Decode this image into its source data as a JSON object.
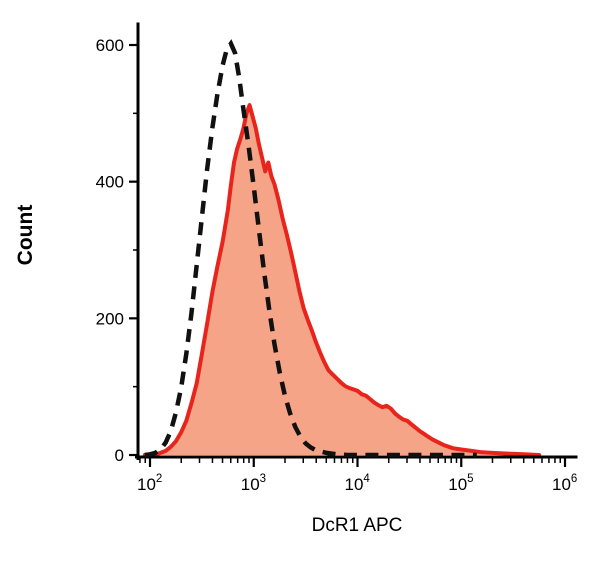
{
  "chart_data": {
    "type": "line",
    "subtype": "flow-cytometry-histogram",
    "title": "",
    "xlabel": "DcR1 APC",
    "ylabel": "Count",
    "x_scale": "log10",
    "x_range_log": [
      2,
      6
    ],
    "ylim": [
      0,
      600
    ],
    "y_ticks": [
      0,
      200,
      400,
      600
    ],
    "y_minor_ticks": [
      100,
      300,
      500
    ],
    "x_tick_base": "10",
    "x_tick_exponents": [
      2,
      3,
      4,
      5,
      6
    ],
    "grid": false,
    "legend": "none",
    "series": [
      {
        "name": "dcr1-apc-stained",
        "label": "DcR1 APC stained (red filled)",
        "style": "filled",
        "color": "#e8251c",
        "fill_color": "#f6a488",
        "points": [
          [
            1.95,
            0
          ],
          [
            2.0,
            0
          ],
          [
            2.05,
            1
          ],
          [
            2.1,
            3
          ],
          [
            2.15,
            6
          ],
          [
            2.2,
            12
          ],
          [
            2.25,
            20
          ],
          [
            2.3,
            33
          ],
          [
            2.35,
            50
          ],
          [
            2.4,
            76
          ],
          [
            2.45,
            105
          ],
          [
            2.5,
            148
          ],
          [
            2.55,
            192
          ],
          [
            2.6,
            238
          ],
          [
            2.65,
            276
          ],
          [
            2.7,
            312
          ],
          [
            2.75,
            358
          ],
          [
            2.78,
            395
          ],
          [
            2.81,
            428
          ],
          [
            2.84,
            448
          ],
          [
            2.87,
            462
          ],
          [
            2.9,
            478
          ],
          [
            2.93,
            500
          ],
          [
            2.96,
            512
          ],
          [
            2.99,
            495
          ],
          [
            3.02,
            478
          ],
          [
            3.05,
            455
          ],
          [
            3.08,
            435
          ],
          [
            3.11,
            415
          ],
          [
            3.14,
            428
          ],
          [
            3.17,
            408
          ],
          [
            3.2,
            396
          ],
          [
            3.24,
            372
          ],
          [
            3.28,
            345
          ],
          [
            3.32,
            322
          ],
          [
            3.36,
            296
          ],
          [
            3.4,
            268
          ],
          [
            3.44,
            240
          ],
          [
            3.48,
            215
          ],
          [
            3.52,
            198
          ],
          [
            3.56,
            182
          ],
          [
            3.6,
            165
          ],
          [
            3.64,
            150
          ],
          [
            3.68,
            136
          ],
          [
            3.72,
            124
          ],
          [
            3.76,
            118
          ],
          [
            3.8,
            112
          ],
          [
            3.84,
            106
          ],
          [
            3.88,
            101
          ],
          [
            3.92,
            98
          ],
          [
            3.96,
            96
          ],
          [
            4.0,
            94
          ],
          [
            4.04,
            89
          ],
          [
            4.08,
            87
          ],
          [
            4.12,
            82
          ],
          [
            4.16,
            77
          ],
          [
            4.2,
            73
          ],
          [
            4.24,
            70
          ],
          [
            4.28,
            72
          ],
          [
            4.32,
            68
          ],
          [
            4.36,
            61
          ],
          [
            4.4,
            56
          ],
          [
            4.44,
            52
          ],
          [
            4.48,
            50
          ],
          [
            4.52,
            45
          ],
          [
            4.56,
            40
          ],
          [
            4.6,
            35
          ],
          [
            4.64,
            31
          ],
          [
            4.68,
            27
          ],
          [
            4.72,
            23
          ],
          [
            4.76,
            20
          ],
          [
            4.8,
            17
          ],
          [
            4.84,
            14
          ],
          [
            4.88,
            12
          ],
          [
            4.92,
            10
          ],
          [
            4.96,
            9
          ],
          [
            5.0,
            8
          ],
          [
            5.1,
            6
          ],
          [
            5.2,
            4
          ],
          [
            5.3,
            3
          ],
          [
            5.45,
            2
          ],
          [
            5.6,
            1
          ],
          [
            5.75,
            0
          ]
        ]
      },
      {
        "name": "isotype-control",
        "label": "Isotype control (black dashed)",
        "style": "dashed",
        "color": "#111111",
        "points": [
          [
            1.95,
            0
          ],
          [
            2.0,
            1
          ],
          [
            2.05,
            3
          ],
          [
            2.1,
            8
          ],
          [
            2.15,
            18
          ],
          [
            2.2,
            35
          ],
          [
            2.25,
            62
          ],
          [
            2.3,
            98
          ],
          [
            2.35,
            148
          ],
          [
            2.4,
            208
          ],
          [
            2.45,
            278
          ],
          [
            2.5,
            348
          ],
          [
            2.55,
            418
          ],
          [
            2.6,
            478
          ],
          [
            2.65,
            528
          ],
          [
            2.7,
            570
          ],
          [
            2.74,
            594
          ],
          [
            2.78,
            602
          ],
          [
            2.82,
            588
          ],
          [
            2.86,
            552
          ],
          [
            2.9,
            506
          ],
          [
            2.95,
            452
          ],
          [
            3.0,
            392
          ],
          [
            3.05,
            330
          ],
          [
            3.1,
            268
          ],
          [
            3.15,
            212
          ],
          [
            3.2,
            162
          ],
          [
            3.25,
            121
          ],
          [
            3.3,
            87
          ],
          [
            3.35,
            61
          ],
          [
            3.4,
            41
          ],
          [
            3.45,
            27
          ],
          [
            3.5,
            17
          ],
          [
            3.55,
            11
          ],
          [
            3.6,
            7
          ],
          [
            3.7,
            3
          ],
          [
            3.8,
            1
          ],
          [
            3.9,
            0
          ],
          [
            4.2,
            0
          ],
          [
            4.6,
            0
          ],
          [
            5.0,
            0
          ],
          [
            5.15,
            0
          ]
        ]
      }
    ]
  }
}
